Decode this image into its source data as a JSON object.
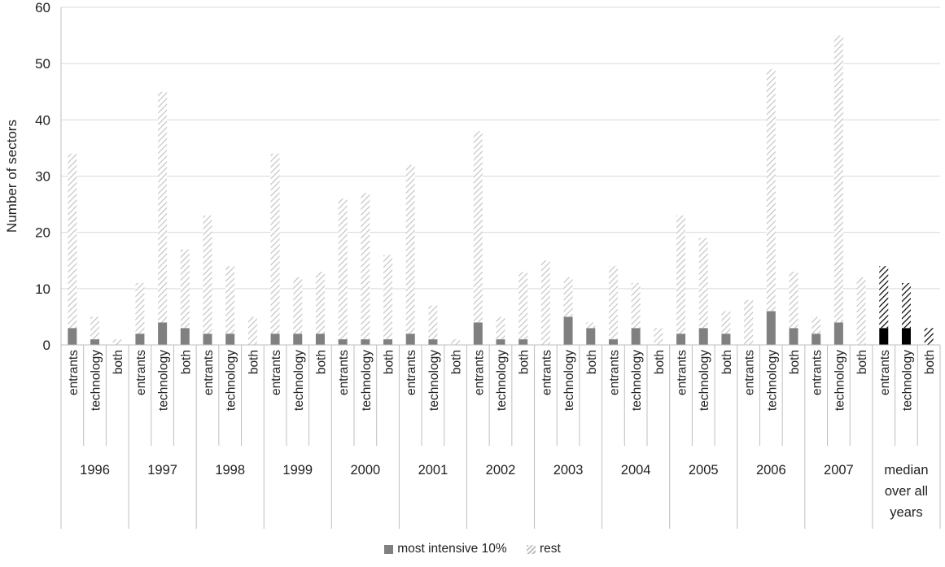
{
  "chart_data": {
    "type": "bar",
    "stacked": true,
    "ylabel": "Number of sectors",
    "ylim": [
      0,
      60
    ],
    "yticks": [
      0,
      10,
      20,
      30,
      40,
      50,
      60
    ],
    "grid": true,
    "legend_position": "bottom",
    "subcategories": [
      "entrants",
      "technology",
      "both"
    ],
    "groups": [
      {
        "label": "1996",
        "label_lines": [
          "1996"
        ],
        "intensive": [
          3,
          1,
          0
        ],
        "rest": [
          31,
          4,
          1
        ]
      },
      {
        "label": "1997",
        "label_lines": [
          "1997"
        ],
        "intensive": [
          2,
          4,
          3
        ],
        "rest": [
          9,
          41,
          14
        ]
      },
      {
        "label": "1998",
        "label_lines": [
          "1998"
        ],
        "intensive": [
          2,
          2,
          0
        ],
        "rest": [
          21,
          12,
          5
        ]
      },
      {
        "label": "1999",
        "label_lines": [
          "1999"
        ],
        "intensive": [
          2,
          2,
          2
        ],
        "rest": [
          32,
          10,
          11
        ]
      },
      {
        "label": "2000",
        "label_lines": [
          "2000"
        ],
        "intensive": [
          1,
          1,
          1
        ],
        "rest": [
          25,
          26,
          15
        ]
      },
      {
        "label": "2001",
        "label_lines": [
          "2001"
        ],
        "intensive": [
          2,
          1,
          0
        ],
        "rest": [
          30,
          6,
          1
        ]
      },
      {
        "label": "2002",
        "label_lines": [
          "2002"
        ],
        "intensive": [
          4,
          1,
          1
        ],
        "rest": [
          34,
          4,
          12
        ]
      },
      {
        "label": "2003",
        "label_lines": [
          "2003"
        ],
        "intensive": [
          0,
          5,
          3
        ],
        "rest": [
          15,
          7,
          1
        ]
      },
      {
        "label": "2004",
        "label_lines": [
          "2004"
        ],
        "intensive": [
          1,
          3,
          0
        ],
        "rest": [
          13,
          8,
          3
        ]
      },
      {
        "label": "2005",
        "label_lines": [
          "2005"
        ],
        "intensive": [
          2,
          3,
          2
        ],
        "rest": [
          21,
          16,
          4
        ]
      },
      {
        "label": "2006",
        "label_lines": [
          "2006"
        ],
        "intensive": [
          0,
          6,
          3
        ],
        "rest": [
          8,
          43,
          10
        ]
      },
      {
        "label": "2007",
        "label_lines": [
          "2007"
        ],
        "intensive": [
          2,
          4,
          0
        ],
        "rest": [
          3,
          51,
          12
        ]
      },
      {
        "label": "median over all years",
        "label_lines": [
          "median",
          "over all",
          "years"
        ],
        "intensive": [
          3,
          3,
          0
        ],
        "rest": [
          11,
          8,
          3
        ],
        "highlight": true
      }
    ],
    "series": [
      {
        "name": "most intensive 10%",
        "color": "#808080",
        "highlight_color": "#000000",
        "pattern": "solid"
      },
      {
        "name": "rest",
        "color": "#c0c0c0",
        "highlight_color": "#000000",
        "pattern": "diagonal-hatch"
      }
    ]
  }
}
